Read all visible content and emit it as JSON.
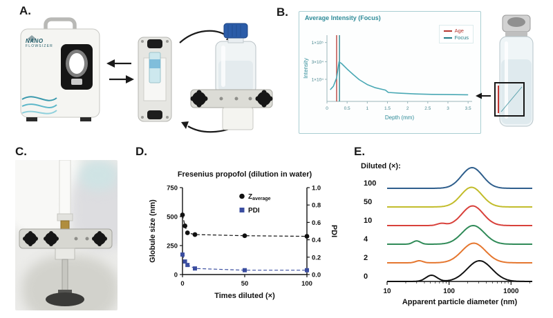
{
  "panels": {
    "a_label": "A.",
    "b_label": "B.",
    "c_label": "C.",
    "d_label": "D.",
    "e_label": "E."
  },
  "instrument": {
    "brand_top": "NANO",
    "brand_bottom": "FLOWSIZER"
  },
  "chart_data": [
    {
      "id": "focus-depth-scan",
      "type": "line",
      "title": "Average Intensity (Focus)",
      "xlabel": "Depth (mm)",
      "ylabel": "Intensity",
      "yscale": "log",
      "xlim": [
        0,
        3.6
      ],
      "ylog_range": [
        3.4,
        5.2
      ],
      "curve_color": "#49a8b4",
      "ytick_labels": [
        {
          "label": "1×10⁵",
          "value": 100000
        },
        {
          "label": "3×10⁴",
          "value": 30000
        },
        {
          "label": "1×10⁴",
          "value": 10000
        }
      ],
      "xticks": [
        0,
        0.5,
        1,
        1.5,
        2,
        2.5,
        3,
        3.5
      ],
      "markers": [
        {
          "label": "Age",
          "x": 0.24,
          "color": "#b5342e"
        },
        {
          "label": "Focus",
          "x": 0.31,
          "color": "#1d7a85"
        }
      ],
      "points": [
        [
          0.08,
          5200
        ],
        [
          0.16,
          6500
        ],
        [
          0.24,
          11000
        ],
        [
          0.3,
          30000
        ],
        [
          0.36,
          27000
        ],
        [
          0.5,
          19000
        ],
        [
          0.65,
          13500
        ],
        [
          0.8,
          9800
        ],
        [
          1.0,
          7200
        ],
        [
          1.2,
          5900
        ],
        [
          1.45,
          5100
        ],
        [
          1.52,
          4400
        ],
        [
          1.8,
          4200
        ],
        [
          2.2,
          4000
        ],
        [
          2.6,
          3900
        ],
        [
          3.0,
          3850
        ],
        [
          3.5,
          3800
        ]
      ]
    },
    {
      "id": "propofol-dilution",
      "type": "scatter",
      "title": "Fresenius propofol (dilution in water)",
      "xlabel": "Times diluted (×)",
      "ylabel_left": "Globule size (nm)",
      "ylabel_right": "PDI",
      "xticks": [
        0,
        50,
        100
      ],
      "yticks_left": [
        0,
        250,
        500,
        750
      ],
      "yticks_right": [
        0,
        0.2,
        0.4,
        0.6,
        0.8,
        1.0
      ],
      "ylim_left": [
        0,
        750
      ],
      "ylim_right": [
        0,
        1.0
      ],
      "series": [
        {
          "name": "Zaverage",
          "label_main": "Z",
          "label_sub": "average",
          "axis": "left",
          "marker": "circle",
          "color": "#111111",
          "x": [
            0,
            2,
            4,
            10,
            50,
            100
          ],
          "y": [
            515,
            420,
            360,
            345,
            335,
            330
          ]
        },
        {
          "name": "PDI",
          "label_main": "PDI",
          "label_sub": "",
          "axis": "right",
          "marker": "square",
          "color": "#3b4ea0",
          "x": [
            0,
            2,
            4,
            10,
            50,
            100
          ],
          "y": [
            0.23,
            0.15,
            0.11,
            0.07,
            0.05,
            0.05
          ]
        }
      ]
    },
    {
      "id": "size-distributions",
      "type": "line",
      "group_label": "Diluted (×):",
      "xlabel": "Apparent particle diameter (nm)",
      "xscale": "log",
      "xticks": [
        10,
        100,
        1000
      ],
      "xlim": [
        10,
        2200
      ],
      "series_note": "stacked intensity-weighted size distributions, top to bottom",
      "series": [
        {
          "name": "100",
          "color": "#2e5e8c",
          "peaks": [
            {
              "center_nm": 235,
              "log_sigma": 0.17,
              "height": 1.0
            }
          ]
        },
        {
          "name": "50",
          "color": "#c2bc2a",
          "peaks": [
            {
              "center_nm": 230,
              "log_sigma": 0.17,
              "height": 0.95
            }
          ]
        },
        {
          "name": "10",
          "color": "#d8403a",
          "peaks": [
            {
              "center_nm": 240,
              "log_sigma": 0.17,
              "height": 0.95
            },
            {
              "center_nm": 75,
              "log_sigma": 0.07,
              "height": 0.1
            }
          ]
        },
        {
          "name": "4",
          "color": "#2f8a57",
          "peaks": [
            {
              "center_nm": 245,
              "log_sigma": 0.18,
              "height": 0.9
            },
            {
              "center_nm": 30,
              "log_sigma": 0.06,
              "height": 0.16
            }
          ]
        },
        {
          "name": "2",
          "color": "#e5762e",
          "peaks": [
            {
              "center_nm": 250,
              "log_sigma": 0.19,
              "height": 0.95
            },
            {
              "center_nm": 33,
              "log_sigma": 0.06,
              "height": 0.1
            }
          ]
        },
        {
          "name": "0",
          "color": "#111111",
          "peaks": [
            {
              "center_nm": 310,
              "log_sigma": 0.2,
              "height": 1.0
            },
            {
              "center_nm": 52,
              "log_sigma": 0.09,
              "height": 0.3
            }
          ]
        }
      ]
    }
  ]
}
